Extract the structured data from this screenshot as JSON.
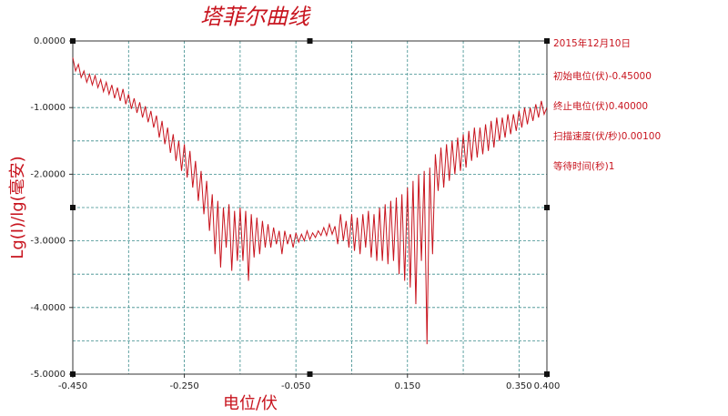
{
  "chart_data": {
    "type": "line",
    "title": "塔菲尔曲线",
    "xlabel": "电位/伏",
    "ylabel": "Lg(I)/lg(毫安)",
    "annotations": [
      "2015年12月10日",
      "初始电位(伏)-0.45000",
      "终止电位(伏)0.40000",
      "扫描速度(伏/秒)0.00100",
      "等待时间(秒)1"
    ],
    "color": "#c8141e",
    "grid": true,
    "xlim": [
      -0.45,
      0.4
    ],
    "ylim": [
      -5,
      0
    ],
    "xticks": [
      {
        "value": -0.45,
        "label": "-0.450"
      },
      {
        "value": -0.25,
        "label": "-0.250"
      },
      {
        "value": -0.05,
        "label": "-0.050"
      },
      {
        "value": 0.15,
        "label": "0.150"
      },
      {
        "value": 0.35,
        "label": "0.350"
      },
      {
        "value": 0.4,
        "label": "0.400"
      }
    ],
    "yticks": [
      {
        "value": 0,
        "label": "0.0000"
      },
      {
        "value": -1,
        "label": "-1.0000"
      },
      {
        "value": -2,
        "label": "-2.0000"
      },
      {
        "value": -3,
        "label": "-3.0000"
      },
      {
        "value": -4,
        "label": "-4.0000"
      },
      {
        "value": -5,
        "label": "-5.0000"
      }
    ],
    "xgrid": [
      -0.35,
      -0.25,
      -0.15,
      -0.05,
      0.05,
      0.15,
      0.25,
      0.35
    ],
    "ygrid": [
      -0.5,
      -1,
      -1.5,
      -2,
      -2.5,
      -3,
      -3.5,
      -4,
      -4.5
    ],
    "x": [
      -0.45,
      -0.445,
      -0.44,
      -0.435,
      -0.43,
      -0.425,
      -0.42,
      -0.415,
      -0.41,
      -0.405,
      -0.4,
      -0.395,
      -0.39,
      -0.385,
      -0.38,
      -0.375,
      -0.37,
      -0.365,
      -0.36,
      -0.355,
      -0.35,
      -0.345,
      -0.34,
      -0.335,
      -0.33,
      -0.325,
      -0.32,
      -0.315,
      -0.31,
      -0.305,
      -0.3,
      -0.295,
      -0.29,
      -0.285,
      -0.28,
      -0.275,
      -0.27,
      -0.265,
      -0.26,
      -0.255,
      -0.25,
      -0.245,
      -0.24,
      -0.235,
      -0.23,
      -0.225,
      -0.22,
      -0.215,
      -0.21,
      -0.205,
      -0.2,
      -0.195,
      -0.19,
      -0.185,
      -0.18,
      -0.175,
      -0.17,
      -0.165,
      -0.16,
      -0.155,
      -0.15,
      -0.145,
      -0.14,
      -0.135,
      -0.13,
      -0.125,
      -0.12,
      -0.115,
      -0.11,
      -0.105,
      -0.1,
      -0.095,
      -0.09,
      -0.085,
      -0.08,
      -0.075,
      -0.07,
      -0.065,
      -0.06,
      -0.055,
      -0.05,
      -0.045,
      -0.04,
      -0.035,
      -0.03,
      -0.025,
      -0.02,
      -0.015,
      -0.01,
      -0.005,
      0,
      0.005,
      0.01,
      0.015,
      0.02,
      0.025,
      0.03,
      0.035,
      0.04,
      0.045,
      0.05,
      0.055,
      0.06,
      0.065,
      0.07,
      0.075,
      0.08,
      0.085,
      0.09,
      0.095,
      0.1,
      0.105,
      0.11,
      0.115,
      0.12,
      0.125,
      0.13,
      0.135,
      0.14,
      0.145,
      0.15,
      0.155,
      0.16,
      0.165,
      0.17,
      0.175,
      0.18,
      0.185,
      0.19,
      0.195,
      0.2,
      0.205,
      0.21,
      0.215,
      0.22,
      0.225,
      0.23,
      0.235,
      0.24,
      0.245,
      0.25,
      0.255,
      0.26,
      0.265,
      0.27,
      0.275,
      0.28,
      0.285,
      0.29,
      0.295,
      0.3,
      0.305,
      0.31,
      0.315,
      0.32,
      0.325,
      0.33,
      0.335,
      0.34,
      0.345,
      0.35,
      0.355,
      0.36,
      0.365,
      0.37,
      0.375,
      0.38,
      0.385,
      0.39,
      0.395,
      0.4
    ],
    "values": [
      -0.25,
      -0.45,
      -0.35,
      -0.55,
      -0.45,
      -0.62,
      -0.5,
      -0.66,
      -0.52,
      -0.7,
      -0.58,
      -0.76,
      -0.62,
      -0.8,
      -0.66,
      -0.86,
      -0.7,
      -0.9,
      -0.72,
      -0.95,
      -0.8,
      -1.02,
      -0.86,
      -1.08,
      -0.92,
      -1.15,
      -0.98,
      -1.22,
      -1.05,
      -1.3,
      -1.12,
      -1.45,
      -1.2,
      -1.55,
      -1.3,
      -1.68,
      -1.4,
      -1.8,
      -1.5,
      -1.95,
      -1.55,
      -2.05,
      -1.65,
      -2.2,
      -1.8,
      -2.4,
      -1.95,
      -2.6,
      -2.1,
      -2.85,
      -2.3,
      -3.2,
      -2.4,
      -3.4,
      -2.5,
      -3.1,
      -2.45,
      -3.45,
      -2.55,
      -3.3,
      -2.5,
      -3.3,
      -2.55,
      -3.6,
      -2.6,
      -3.25,
      -2.65,
      -3.2,
      -2.7,
      -3.1,
      -2.75,
      -3.1,
      -2.8,
      -3.05,
      -2.85,
      -3.2,
      -2.85,
      -3.05,
      -2.9,
      -3.1,
      -2.88,
      -3.02,
      -2.9,
      -3.0,
      -2.85,
      -2.98,
      -2.88,
      -2.95,
      -2.85,
      -2.92,
      -2.8,
      -2.92,
      -2.75,
      -2.9,
      -2.78,
      -3.05,
      -2.6,
      -3.0,
      -2.7,
      -3.1,
      -2.6,
      -3.15,
      -2.65,
      -3.2,
      -2.6,
      -3.1,
      -2.55,
      -3.25,
      -2.6,
      -3.3,
      -2.5,
      -3.3,
      -2.45,
      -3.35,
      -2.4,
      -3.3,
      -2.35,
      -3.5,
      -2.3,
      -3.6,
      -2.2,
      -3.7,
      -2.1,
      -3.95,
      -2.0,
      -3.3,
      -1.95,
      -4.55,
      -1.9,
      -3.2,
      -1.7,
      -2.25,
      -1.6,
      -2.2,
      -1.55,
      -2.1,
      -1.5,
      -2.0,
      -1.45,
      -1.95,
      -1.4,
      -1.9,
      -1.35,
      -1.8,
      -1.3,
      -1.75,
      -1.3,
      -1.7,
      -1.25,
      -1.65,
      -1.2,
      -1.6,
      -1.15,
      -1.5,
      -1.15,
      -1.45,
      -1.1,
      -1.4,
      -1.1,
      -1.35,
      -1.05,
      -1.3,
      -1.0,
      -1.25,
      -1.0,
      -1.2,
      -0.95,
      -1.15,
      -0.9,
      -1.1,
      -1.0
    ]
  }
}
